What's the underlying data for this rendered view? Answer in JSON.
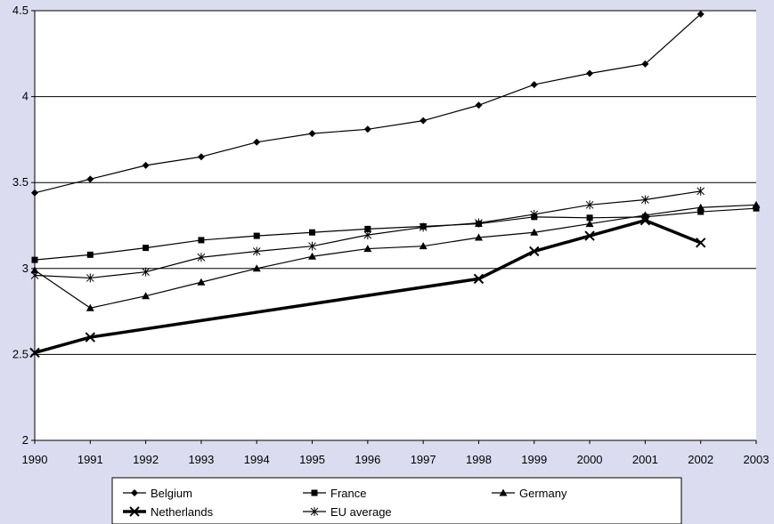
{
  "chart_data": {
    "type": "line",
    "title": "",
    "xlabel": "",
    "ylabel": "",
    "x": [
      1990,
      1991,
      1992,
      1993,
      1994,
      1995,
      1996,
      1997,
      1998,
      1999,
      2000,
      2001,
      2002,
      2003
    ],
    "x_tick_labels": [
      "1990",
      "1991",
      "1992",
      "1993",
      "1994",
      "1995",
      "1996",
      "1997",
      "1998",
      "1999",
      "2000",
      "2001",
      "2002",
      "2003"
    ],
    "ylim": [
      2,
      4.5
    ],
    "y_ticks": [
      2,
      2.5,
      3,
      3.5,
      4,
      4.5
    ],
    "y_tick_labels": [
      "2",
      "2.5",
      "3",
      "3.5",
      "4",
      "4.5"
    ],
    "grid": "horizontal",
    "legend_position": "bottom",
    "series": [
      {
        "name": "Belgium",
        "marker": "diamond",
        "color": "#000000",
        "values": [
          3.44,
          3.52,
          3.6,
          3.65,
          3.735,
          3.785,
          3.81,
          3.86,
          3.95,
          4.07,
          4.135,
          4.19,
          4.48,
          null
        ]
      },
      {
        "name": "France",
        "marker": "square",
        "color": "#000000",
        "values": [
          3.05,
          3.08,
          3.12,
          3.165,
          3.19,
          3.21,
          3.23,
          3.245,
          3.26,
          3.3,
          3.295,
          3.3,
          3.33,
          3.35
        ]
      },
      {
        "name": "Germany",
        "marker": "triangle",
        "color": "#000000",
        "values": [
          2.99,
          2.77,
          2.84,
          2.92,
          3.0,
          3.07,
          3.115,
          3.13,
          3.18,
          3.21,
          3.26,
          3.31,
          3.355,
          3.37
        ]
      },
      {
        "name": "Netherlands",
        "marker": "x",
        "color": "#000000",
        "bold": true,
        "values": [
          2.51,
          2.6,
          null,
          null,
          null,
          null,
          null,
          null,
          2.94,
          3.1,
          3.19,
          3.28,
          3.15,
          null
        ]
      },
      {
        "name": "EU average",
        "marker": "star",
        "color": "#000000",
        "values": [
          2.96,
          2.945,
          2.98,
          3.065,
          3.1,
          3.13,
          3.195,
          3.24,
          3.265,
          3.315,
          3.37,
          3.4,
          3.45,
          null
        ]
      }
    ]
  }
}
